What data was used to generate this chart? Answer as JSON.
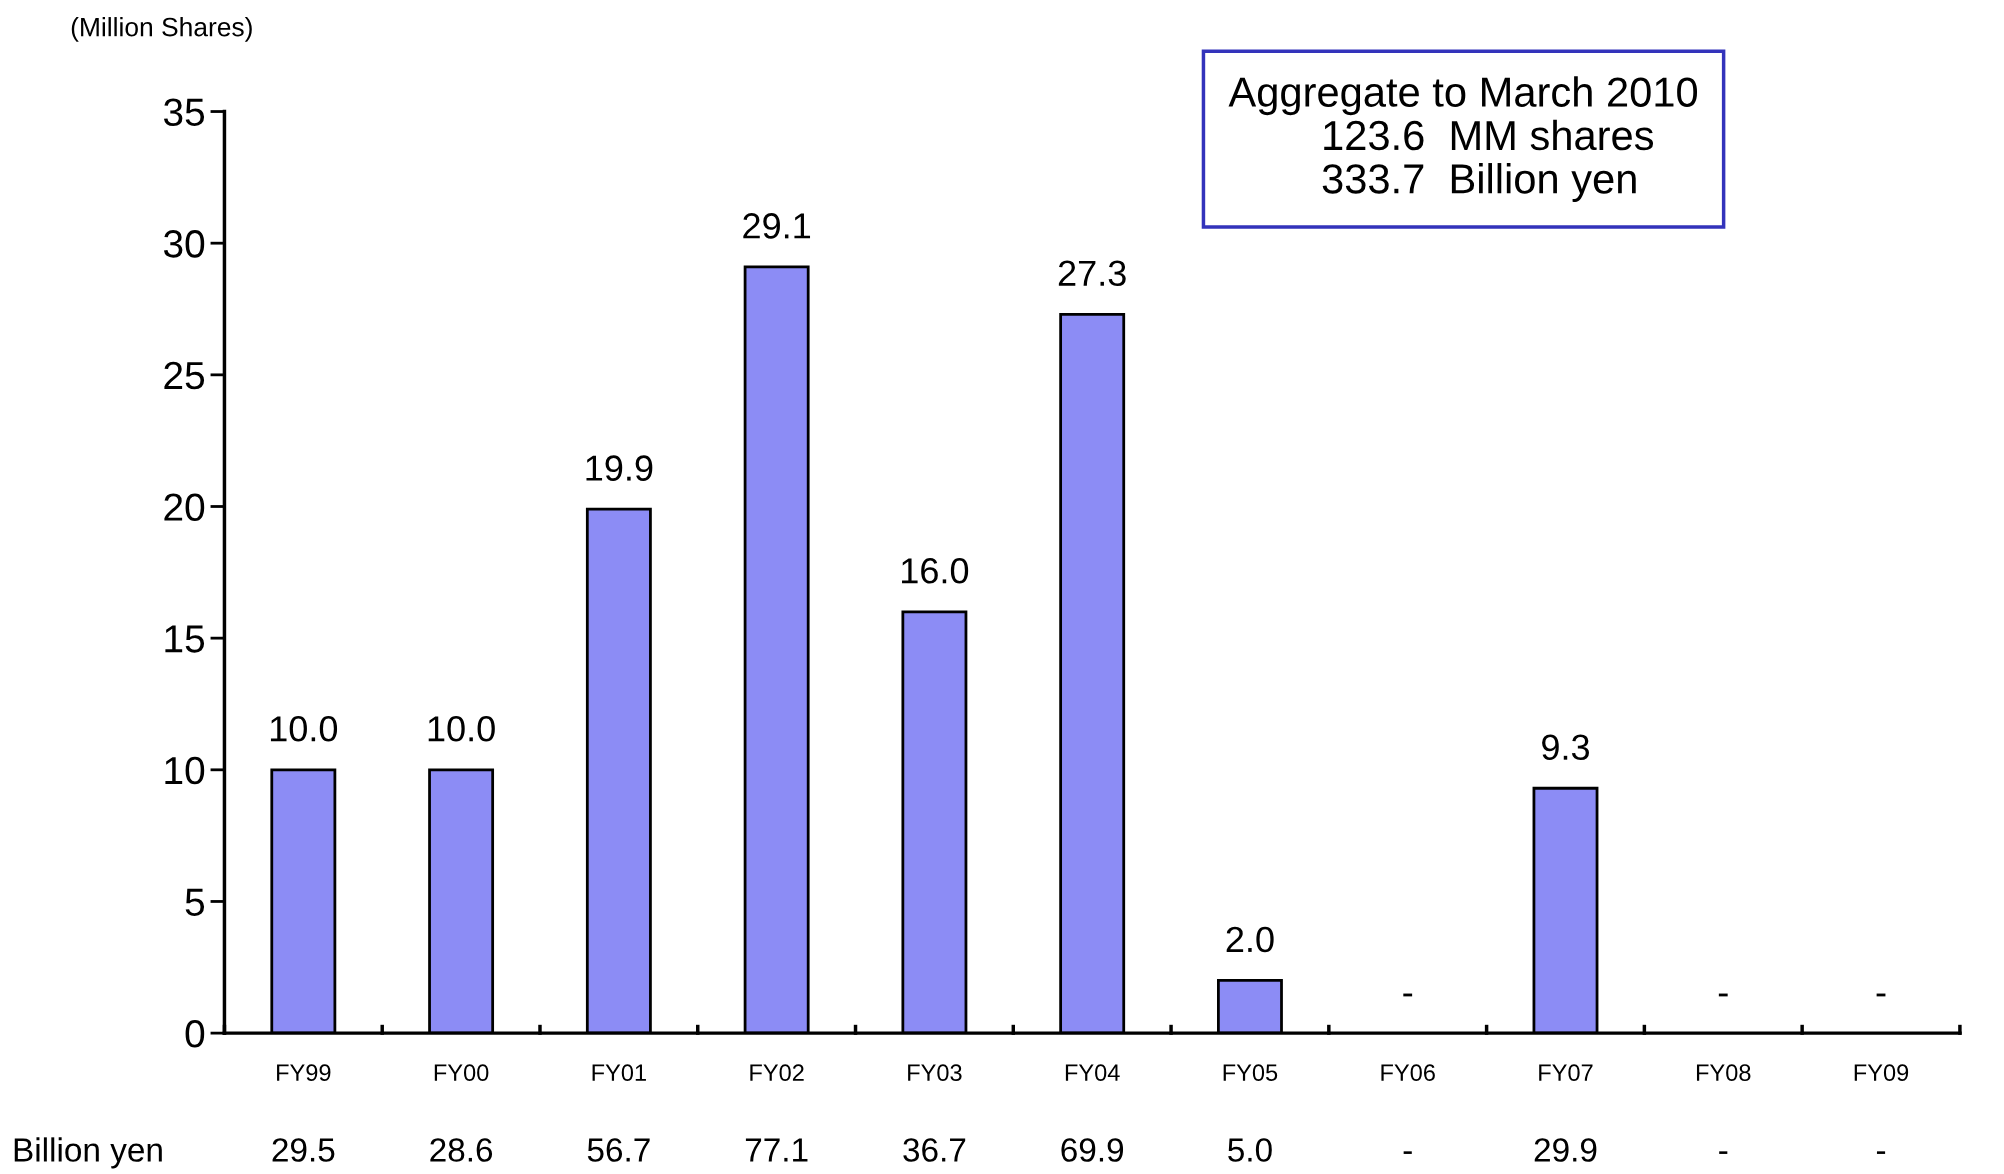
{
  "chart_data": {
    "type": "bar",
    "ylabel": "(Million Shares)",
    "categories": [
      "FY99",
      "FY00",
      "FY01",
      "FY02",
      "FY03",
      "FY04",
      "FY05",
      "FY06",
      "FY07",
      "FY08",
      "FY09"
    ],
    "values": [
      10.0,
      10.0,
      19.9,
      29.1,
      16.0,
      27.3,
      2.0,
      null,
      9.3,
      null,
      null
    ],
    "value_labels": [
      "10.0",
      "10.0",
      "19.9",
      "29.1",
      "16.0",
      "27.3",
      "2.0",
      "-",
      "9.3",
      "-",
      "-"
    ],
    "color": "#8c8cf5",
    "ylim": [
      0,
      35
    ],
    "yticks": [
      0,
      5,
      10,
      15,
      20,
      25,
      30,
      35
    ],
    "grid": false,
    "annotations": [
      "Aggregate to March 2010\n        123.6  MM shares\n        333.7  Billion yen",
      "Billion yen",
      "29.5",
      "28.6",
      "56.7",
      "77.1",
      "36.7",
      "69.9",
      "5.0",
      "-",
      "29.9",
      "-",
      "-"
    ]
  }
}
